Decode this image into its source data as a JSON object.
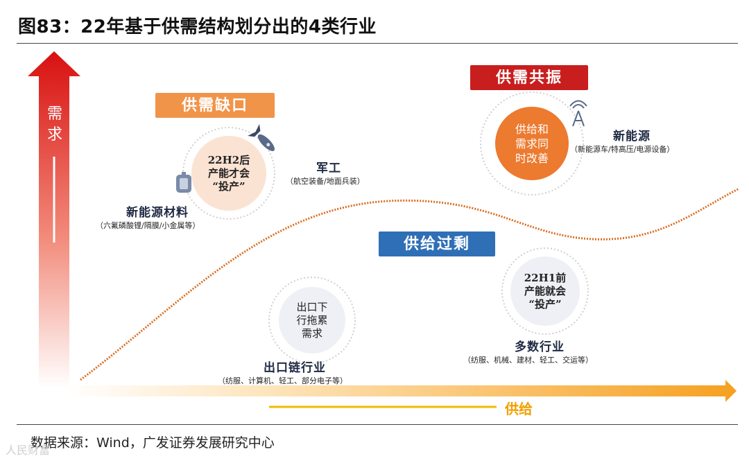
{
  "figure": {
    "title": "图83：22年基于供需结构划分出的4类行业",
    "source": "数据来源：Wind，广发证券发展研究中心",
    "watermark": "人民财富"
  },
  "axes": {
    "y_label_line1": "需",
    "y_label_line2": "求",
    "x_label": "供给"
  },
  "quadrants": {
    "shortage": "供需缺口",
    "resonance": "供需共振",
    "surplus": "供给过剩"
  },
  "bubbles": {
    "shortage_note": {
      "line1": "22H2后",
      "line2": "产能才会",
      "line3": "“投产”"
    },
    "resonance_note": {
      "line1": "供给和",
      "line2": "需求同",
      "line3": "时改善"
    },
    "surplus_note": {
      "line1": "22H1前",
      "line2": "产能就会",
      "line3": "“投产”"
    },
    "export_note": {
      "line1": "出口下",
      "line2": "行拖累",
      "line3": "需求"
    }
  },
  "industries": {
    "new_energy_materials": {
      "name": "新能源材料",
      "detail": "（六氟磷酸锂/隔膜/小金属等）"
    },
    "military": {
      "name": "军工",
      "detail": "（航空装备/地面兵装）"
    },
    "new_energy": {
      "name": "新能源",
      "detail": "（新能源车/特高压/电源设备）"
    },
    "export_chain": {
      "name": "出口链行业",
      "detail": "（纺服、计算机、轻工、部分电子等）"
    },
    "many": {
      "name": "多数行业",
      "detail": "（纺服、机械、建材、轻工、交运等）"
    }
  },
  "colors": {
    "shortage": "#f0944a",
    "resonance": "#c81e1e",
    "surplus": "#2f6fb6",
    "resonance_circle": "#ec7a2f",
    "shortage_circle": "#fbe3d3",
    "neutral_circle": "#eef0f6",
    "curve": "#d96c1f"
  },
  "icons": [
    "rocket-icon",
    "battery-icon",
    "signal-tower-icon"
  ]
}
